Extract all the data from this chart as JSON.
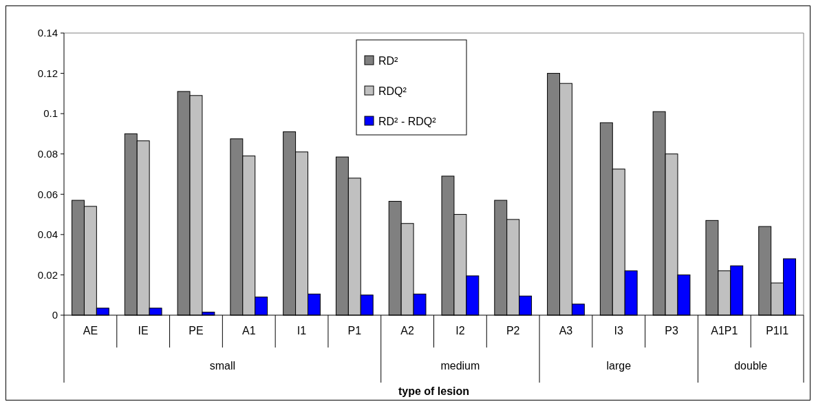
{
  "chart_data": {
    "type": "bar",
    "xlabel": "type of lesion",
    "categories": [
      "AE",
      "IE",
      "PE",
      "A1",
      "I1",
      "P1",
      "A2",
      "I2",
      "P2",
      "A3",
      "I3",
      "P3",
      "A1P1",
      "P1I1"
    ],
    "series": [
      {
        "name": "RD²",
        "color": "#808080",
        "values": [
          0.057,
          0.09,
          0.111,
          0.0875,
          0.091,
          0.0785,
          0.0565,
          0.069,
          0.057,
          0.12,
          0.0955,
          0.101,
          0.047,
          0.044
        ]
      },
      {
        "name": "RDQ²",
        "color": "#c0c0c0",
        "values": [
          0.054,
          0.0865,
          0.109,
          0.079,
          0.081,
          0.068,
          0.0455,
          0.05,
          0.0475,
          0.115,
          0.0725,
          0.08,
          0.022,
          0.016
        ]
      },
      {
        "name": "RD² - RDQ²",
        "color": "#0000ff",
        "values": [
          0.0035,
          0.0035,
          0.0015,
          0.009,
          0.0105,
          0.01,
          0.0105,
          0.0195,
          0.0095,
          0.0055,
          0.022,
          0.02,
          0.0245,
          0.028
        ]
      }
    ],
    "annotations": [
      "small",
      "medium",
      "large",
      "double"
    ],
    "ylim": [
      0,
      0.14
    ],
    "yticks": [
      0,
      0.02,
      0.04,
      0.06,
      0.08,
      0.1,
      0.12,
      0.14
    ],
    "grid": false,
    "legend": "top"
  }
}
